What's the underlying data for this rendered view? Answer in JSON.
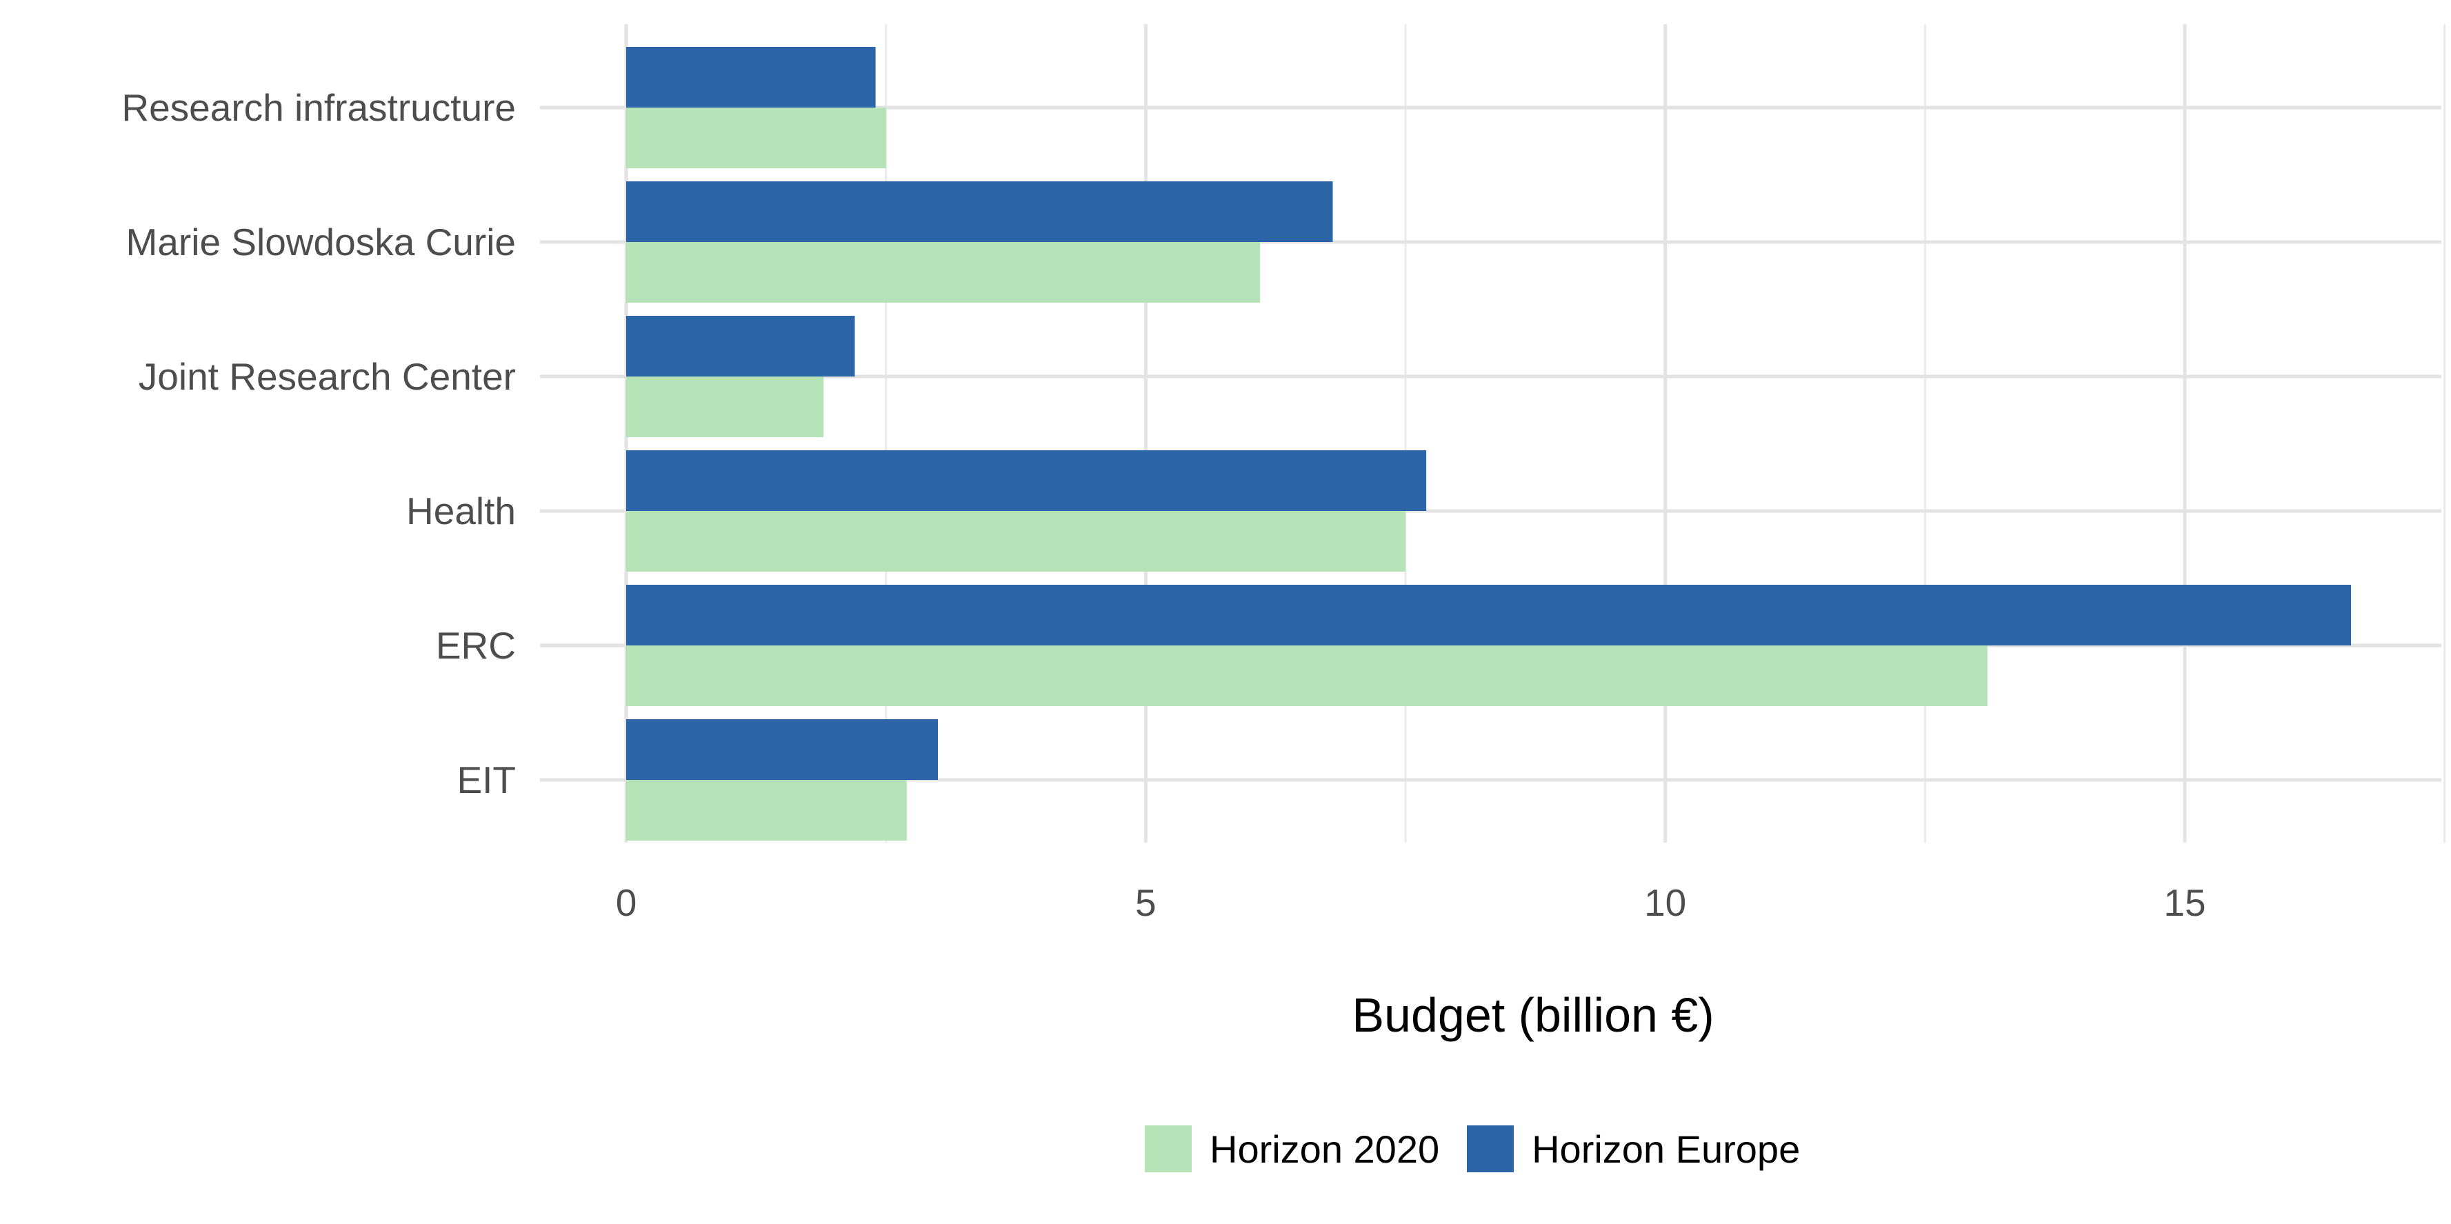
{
  "chart_data": {
    "type": "bar",
    "orientation": "horizontal",
    "categories": [
      "EIT",
      "ERC",
      "Health",
      "Joint Research Center",
      "Marie Slowdoska Curie",
      "Research infrastructure"
    ],
    "series": [
      {
        "name": "Horizon 2020",
        "color": "#b5e2b6",
        "values": [
          2.7,
          13.1,
          7.5,
          1.9,
          6.1,
          2.5
        ]
      },
      {
        "name": "Horizon Europe",
        "color": "#2b65a7",
        "values": [
          3.0,
          16.6,
          7.7,
          2.2,
          6.8,
          2.4
        ]
      }
    ],
    "xlabel": "Budget (billion €)",
    "ylabel": "",
    "title": "",
    "xlim": [
      0,
      17.4
    ],
    "xticks": [
      0,
      5,
      10,
      15
    ],
    "xtick_labels": [
      "0",
      "5",
      "10",
      "15"
    ],
    "grid": true,
    "legend_position": "bottom"
  }
}
